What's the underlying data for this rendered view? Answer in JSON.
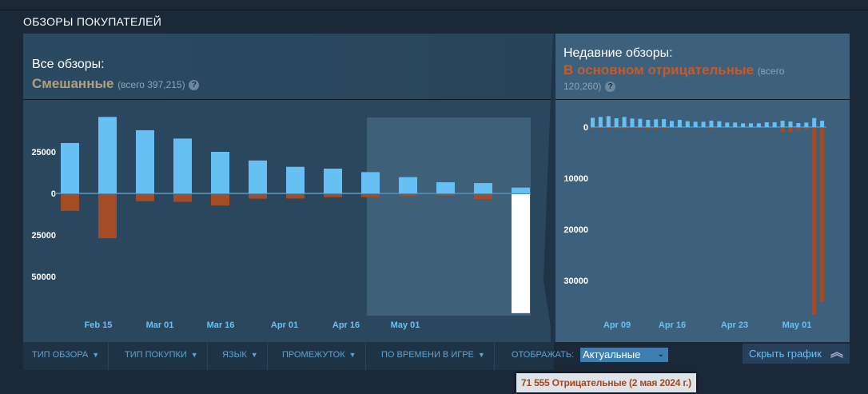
{
  "section_title": "ОБЗОРЫ ПОКУПАТЕЛЕЙ",
  "all_reviews": {
    "label": "Все обзоры:",
    "summary": "Смешанные",
    "total": "(всего 397,215)",
    "help": "?"
  },
  "recent_reviews": {
    "label": "Недавние обзоры:",
    "summary": "В основном отрицательные",
    "total_1": "(всего",
    "total_2": "120,260)",
    "help": "?"
  },
  "colors": {
    "positive": "#66c0f4",
    "negative": "#a34c25",
    "mixed": "#b9a074",
    "negative_text": "#c35c2c"
  },
  "filters": [
    {
      "label": "ТИП ОБЗОРА"
    },
    {
      "label": "ТИП ПОКУПКИ"
    },
    {
      "label": "ЯЗЫК"
    },
    {
      "label": "ПРОМЕЖУТОК"
    },
    {
      "label": "ПО ВРЕМЕНИ В ИГРЕ"
    }
  ],
  "display": {
    "label": "ОТОБРАЖАТЬ:",
    "value": "Актуальные"
  },
  "hide_graph": "Скрыть график",
  "tooltip": "71 555 Отрицательные (2 мая 2024 г.)",
  "chart_data": [
    {
      "type": "bar",
      "title": "Все обзоры",
      "yticks": [
        {
          "v": 25000,
          "label": "25000"
        },
        {
          "v": 0,
          "label": "0"
        },
        {
          "v": -25000,
          "label": "25000"
        },
        {
          "v": -50000,
          "label": "50000"
        }
      ],
      "xticks": [
        "Feb 15",
        "Mar 01",
        "Mar 16",
        "Apr 01",
        "Apr 16",
        "May 01"
      ],
      "positive": [
        30300,
        46000,
        38000,
        33000,
        25000,
        19800,
        16000,
        14900,
        12800,
        9800,
        6700,
        6200,
        3500
      ],
      "negative": [
        10000,
        26500,
        4200,
        4600,
        6800,
        2700,
        2600,
        1800,
        1800,
        1100,
        800,
        2900,
        71555
      ],
      "highlighted_index": 12
    },
    {
      "type": "bar",
      "title": "Недавние обзоры",
      "yticks": [
        {
          "v": 0,
          "label": "0"
        },
        {
          "v": -10000,
          "label": "10000"
        },
        {
          "v": -20000,
          "label": "20000"
        },
        {
          "v": -30000,
          "label": "30000"
        }
      ],
      "xticks": [
        "Apr 09",
        "Apr 16",
        "Apr 23",
        "May 01"
      ],
      "positive": [
        1820,
        1980,
        2130,
        1720,
        1980,
        1670,
        1620,
        1410,
        1510,
        1560,
        1200,
        1410,
        1150,
        1040,
        1040,
        1250,
        1150,
        880,
        880,
        730,
        730,
        730,
        940,
        940,
        1250,
        1090,
        780,
        880,
        1770,
        1250
      ],
      "negative": [
        150,
        150,
        150,
        150,
        150,
        150,
        150,
        150,
        150,
        150,
        0,
        0,
        0,
        0,
        0,
        150,
        0,
        0,
        0,
        0,
        0,
        0,
        0,
        0,
        900,
        900,
        500,
        300,
        36500,
        34000
      ]
    }
  ]
}
